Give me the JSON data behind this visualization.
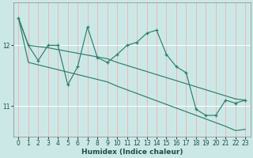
{
  "xlabel": "Humidex (Indice chaleur)",
  "bg_color": "#cce8e6",
  "line_color": "#2e7d6e",
  "grid_color": "#f0d8d8",
  "x_data": [
    0,
    1,
    2,
    3,
    4,
    5,
    6,
    7,
    8,
    9,
    10,
    11,
    12,
    13,
    14,
    15,
    16,
    17,
    18,
    19,
    20,
    21,
    22,
    23
  ],
  "y_main": [
    12.45,
    12.0,
    11.75,
    12.0,
    12.0,
    11.35,
    11.65,
    12.3,
    11.8,
    11.72,
    11.85,
    12.0,
    12.05,
    12.2,
    12.25,
    11.85,
    11.65,
    11.55,
    10.95,
    10.85,
    10.85,
    11.1,
    11.05,
    11.1
  ],
  "y_upper": [
    12.45,
    12.0,
    11.98,
    11.96,
    11.93,
    11.9,
    11.87,
    11.84,
    11.81,
    11.78,
    11.72,
    11.67,
    11.62,
    11.57,
    11.52,
    11.47,
    11.42,
    11.37,
    11.32,
    11.27,
    11.22,
    11.17,
    11.12,
    11.1
  ],
  "y_lower": [
    12.45,
    11.72,
    11.68,
    11.64,
    11.6,
    11.56,
    11.52,
    11.48,
    11.44,
    11.4,
    11.33,
    11.27,
    11.21,
    11.15,
    11.09,
    11.03,
    10.97,
    10.91,
    10.85,
    10.79,
    10.73,
    10.67,
    10.6,
    10.62
  ],
  "yticks": [
    11,
    12
  ],
  "ylim": [
    10.5,
    12.7
  ],
  "xlim": [
    -0.5,
    23.5
  ],
  "xticks": [
    0,
    1,
    2,
    3,
    4,
    5,
    6,
    7,
    8,
    9,
    10,
    11,
    12,
    13,
    14,
    15,
    16,
    17,
    18,
    19,
    20,
    21,
    22,
    23
  ]
}
